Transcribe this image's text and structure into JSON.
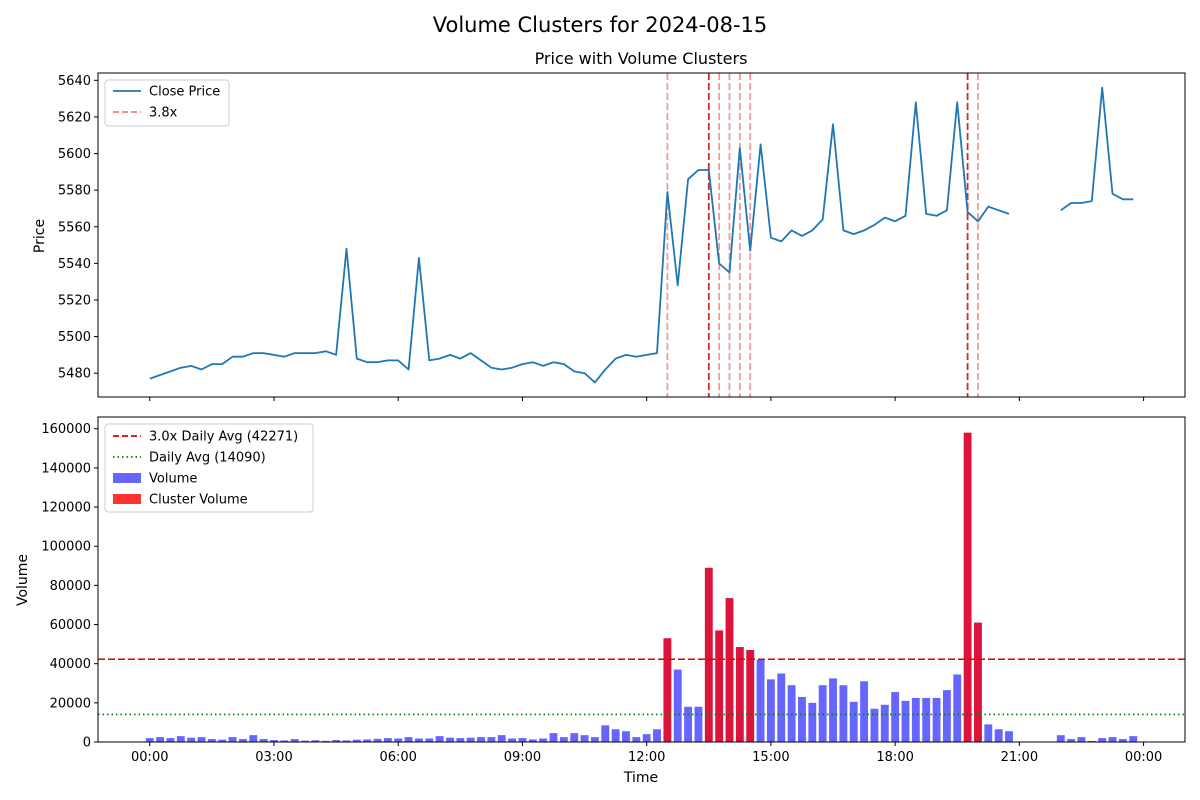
{
  "figure": {
    "suptitle": "Volume Clusters for 2024-08-15"
  },
  "chart_data": [
    {
      "type": "line",
      "title": "Price with Volume Clusters",
      "xlabel": "",
      "ylabel": "Price",
      "x_unit": "hours",
      "xlim": [
        -1.25,
        25.0
      ],
      "ylim": [
        5467,
        5644
      ],
      "xticks": [
        0,
        3,
        6,
        9,
        12,
        15,
        18,
        21,
        24
      ],
      "xtick_labels": [
        "00:00",
        "03:00",
        "06:00",
        "09:00",
        "12:00",
        "15:00",
        "18:00",
        "21:00",
        "00:00"
      ],
      "yticks": [
        5480,
        5500,
        5520,
        5540,
        5560,
        5580,
        5600,
        5620,
        5640
      ],
      "grid": false,
      "legend_position": "top-left",
      "legend": [
        {
          "label": "Close Price",
          "style": "solid",
          "color": "#1f77b4"
        },
        {
          "label": "3.8x",
          "style": "dashed",
          "color": "#f08080"
        }
      ],
      "series": [
        {
          "name": "Close Price",
          "color": "#1f77b4",
          "segments": [
            {
              "x": [
                0,
                0.25,
                0.5,
                0.75,
                1.0,
                1.25,
                1.5,
                1.75,
                2.0,
                2.25,
                2.5,
                2.75,
                3.0,
                3.25,
                3.5,
                3.75,
                4.0,
                4.25,
                4.5,
                4.75,
                5.0,
                5.25,
                5.5,
                5.75,
                6.0,
                6.25,
                6.5,
                6.75,
                7.0,
                7.25,
                7.5,
                7.75,
                8.0,
                8.25,
                8.5,
                8.75,
                9.0,
                9.25,
                9.5,
                9.75,
                10.0,
                10.25,
                10.5,
                10.75,
                11.0,
                11.25,
                11.5,
                11.75,
                12.0,
                12.25,
                12.5,
                12.75,
                13.0,
                13.25,
                13.5,
                13.75,
                14.0,
                14.25,
                14.5,
                14.75,
                15.0,
                15.25,
                15.5,
                15.75,
                16.0,
                16.25,
                16.5,
                16.75,
                17.0,
                17.25,
                17.5,
                17.75,
                18.0,
                18.25,
                18.5,
                18.75,
                19.0,
                19.25,
                19.5,
                19.75,
                20.0,
                20.25,
                20.5,
                20.75
              ],
              "y": [
                5477,
                5479,
                5481,
                5483,
                5484,
                5482,
                5485,
                5485,
                5489,
                5489,
                5491,
                5491,
                5490,
                5489,
                5491,
                5491,
                5491,
                5492,
                5490,
                5548,
                5488,
                5486,
                5486,
                5487,
                5487,
                5482,
                5543,
                5487,
                5488,
                5490,
                5488,
                5491,
                5487,
                5483,
                5482,
                5483,
                5485,
                5486,
                5484,
                5486,
                5485,
                5481,
                5480,
                5475,
                5482,
                5488,
                5490,
                5489,
                5490,
                5491,
                5579,
                5528,
                5586,
                5591,
                5591,
                5540,
                5535,
                5603,
                5547,
                5605,
                5554,
                5552,
                5558,
                5555,
                5558,
                5564,
                5616,
                5558,
                5556,
                5558,
                5561,
                5565,
                5563,
                5566,
                5628,
                5567,
                5566,
                5569,
                5628,
                5568,
                5563,
                5571,
                5569,
                5567
              ]
            },
            {
              "x": [
                22.0,
                22.25,
                22.5,
                22.75,
                23.0,
                23.25,
                23.5,
                23.75
              ],
              "y": [
                5569,
                5573,
                5573,
                5574,
                5636,
                5578,
                5575,
                5575
              ]
            }
          ]
        }
      ],
      "cluster_lines": [
        {
          "x": 12.5,
          "color": "#f08080",
          "alpha": 0.8
        },
        {
          "x": 13.5,
          "color": "#d62728",
          "alpha": 1.0
        },
        {
          "x": 13.75,
          "color": "#f08080",
          "alpha": 0.8
        },
        {
          "x": 14.0,
          "color": "#f08080",
          "alpha": 0.8
        },
        {
          "x": 14.25,
          "color": "#f08080",
          "alpha": 0.8
        },
        {
          "x": 14.5,
          "color": "#f08080",
          "alpha": 0.8
        },
        {
          "x": 19.75,
          "color": "#d62728",
          "alpha": 1.0
        },
        {
          "x": 20.0,
          "color": "#f08080",
          "alpha": 0.8
        }
      ]
    },
    {
      "type": "bar",
      "title": "",
      "xlabel": "Time",
      "ylabel": "Volume",
      "x_unit": "hours",
      "xlim": [
        -1.25,
        25.0
      ],
      "ylim": [
        0,
        166000
      ],
      "xticks": [
        0,
        3,
        6,
        9,
        12,
        15,
        18,
        21,
        24
      ],
      "xtick_labels": [
        "00:00",
        "03:00",
        "06:00",
        "09:00",
        "12:00",
        "15:00",
        "18:00",
        "21:00",
        "00:00"
      ],
      "yticks": [
        0,
        20000,
        40000,
        60000,
        80000,
        100000,
        120000,
        140000,
        160000
      ],
      "grid": false,
      "legend_position": "top-left",
      "legend": [
        {
          "label": "3.0x Daily Avg (42271)",
          "kind": "line",
          "style": "dashed",
          "color": "#e00000"
        },
        {
          "label": "Daily Avg (14090)",
          "kind": "line",
          "style": "dotted",
          "color": "#008000"
        },
        {
          "label": "Volume",
          "kind": "patch",
          "color": "#6666ff"
        },
        {
          "label": "Cluster Volume",
          "kind": "patch",
          "color": "#ff3333"
        }
      ],
      "hlines": [
        {
          "y": 42271,
          "style": "dashed",
          "color": "#e00000"
        },
        {
          "y": 14090,
          "style": "dotted",
          "color": "#008000"
        }
      ],
      "bar_width": 0.19,
      "colors": {
        "normal": "#6666ff",
        "cluster": "#dc143c"
      },
      "x": [
        0,
        0.25,
        0.5,
        0.75,
        1.0,
        1.25,
        1.5,
        1.75,
        2.0,
        2.25,
        2.5,
        2.75,
        3.0,
        3.25,
        3.5,
        3.75,
        4.0,
        4.25,
        4.5,
        4.75,
        5.0,
        5.25,
        5.5,
        5.75,
        6.0,
        6.25,
        6.5,
        6.75,
        7.0,
        7.25,
        7.5,
        7.75,
        8.0,
        8.25,
        8.5,
        8.75,
        9.0,
        9.25,
        9.5,
        9.75,
        10.0,
        10.25,
        10.5,
        10.75,
        11.0,
        11.25,
        11.5,
        11.75,
        12.0,
        12.25,
        12.5,
        12.75,
        13.0,
        13.25,
        13.5,
        13.75,
        14.0,
        14.25,
        14.5,
        14.75,
        15.0,
        15.25,
        15.5,
        15.75,
        16.0,
        16.25,
        16.5,
        16.75,
        17.0,
        17.25,
        17.5,
        17.75,
        18.0,
        18.25,
        18.5,
        18.75,
        19.0,
        19.25,
        19.5,
        19.75,
        20.0,
        20.25,
        20.5,
        20.75,
        22.0,
        22.25,
        22.5,
        22.75,
        23.0,
        23.25,
        23.5,
        23.75
      ],
      "values": [
        2000,
        2500,
        2000,
        3000,
        2200,
        2500,
        1500,
        1200,
        2500,
        1500,
        3500,
        1500,
        1000,
        800,
        1500,
        700,
        900,
        600,
        1000,
        800,
        1200,
        1300,
        1600,
        2000,
        1800,
        2500,
        1800,
        1800,
        3000,
        2200,
        2000,
        2200,
        2500,
        2500,
        3500,
        1800,
        2000,
        1300,
        1800,
        4500,
        2500,
        4500,
        3500,
        2500,
        8500,
        6500,
        5500,
        2500,
        4000,
        6500,
        53000,
        37000,
        18000,
        18000,
        89000,
        57000,
        73500,
        48500,
        47000,
        42000,
        32000,
        35000,
        29000,
        23000,
        20000,
        29000,
        32500,
        29000,
        20500,
        31000,
        17000,
        19000,
        25500,
        21000,
        22500,
        22500,
        22500,
        26500,
        34500,
        158000,
        61000,
        9000,
        6500,
        5500,
        3500,
        1500,
        2500,
        500,
        2000,
        2500,
        1500,
        3000
      ],
      "cluster": [
        false,
        false,
        false,
        false,
        false,
        false,
        false,
        false,
        false,
        false,
        false,
        false,
        false,
        false,
        false,
        false,
        false,
        false,
        false,
        false,
        false,
        false,
        false,
        false,
        false,
        false,
        false,
        false,
        false,
        false,
        false,
        false,
        false,
        false,
        false,
        false,
        false,
        false,
        false,
        false,
        false,
        false,
        false,
        false,
        false,
        false,
        false,
        false,
        false,
        false,
        true,
        false,
        false,
        false,
        true,
        true,
        true,
        true,
        true,
        false,
        false,
        false,
        false,
        false,
        false,
        false,
        false,
        false,
        false,
        false,
        false,
        false,
        false,
        false,
        false,
        false,
        false,
        false,
        false,
        true,
        true,
        false,
        false,
        false,
        false,
        false,
        false,
        false,
        false,
        false,
        false,
        false
      ]
    }
  ]
}
